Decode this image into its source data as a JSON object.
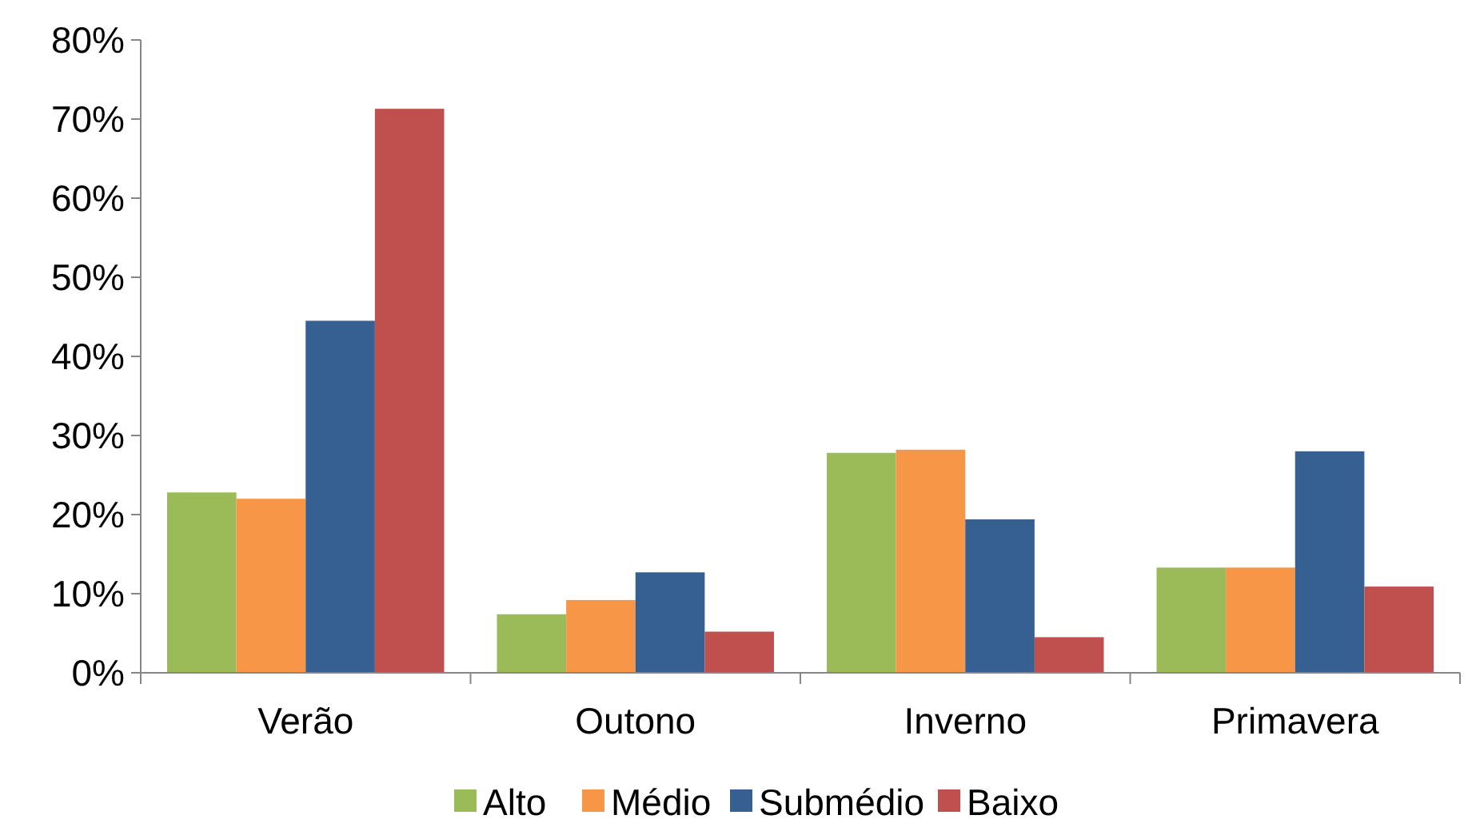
{
  "chart_data": {
    "type": "bar",
    "categories": [
      "Verão",
      "Outono",
      "Inverno",
      "Primavera"
    ],
    "series": [
      {
        "name": "Alto",
        "color": "#9bbb59",
        "values": [
          22.8,
          7.4,
          27.8,
          13.3
        ]
      },
      {
        "name": "Médio",
        "color": "#f79646",
        "values": [
          22.0,
          9.2,
          28.2,
          13.3
        ]
      },
      {
        "name": "Submédio",
        "color": "#366092",
        "values": [
          44.5,
          12.7,
          19.4,
          28.0
        ]
      },
      {
        "name": "Baixo",
        "color": "#c0504d",
        "values": [
          71.3,
          5.2,
          4.5,
          10.9
        ]
      }
    ],
    "ylim": [
      0,
      80
    ],
    "yticks": [
      {
        "value": 0,
        "label": "0%"
      },
      {
        "value": 10,
        "label": "10%"
      },
      {
        "value": 20,
        "label": "20%"
      },
      {
        "value": 30,
        "label": "30%"
      },
      {
        "value": 40,
        "label": "40%"
      },
      {
        "value": 50,
        "label": "50%"
      },
      {
        "value": 60,
        "label": "60%"
      },
      {
        "value": 70,
        "label": "70%"
      },
      {
        "value": 80,
        "label": "80%"
      }
    ],
    "legend": "bottom"
  }
}
